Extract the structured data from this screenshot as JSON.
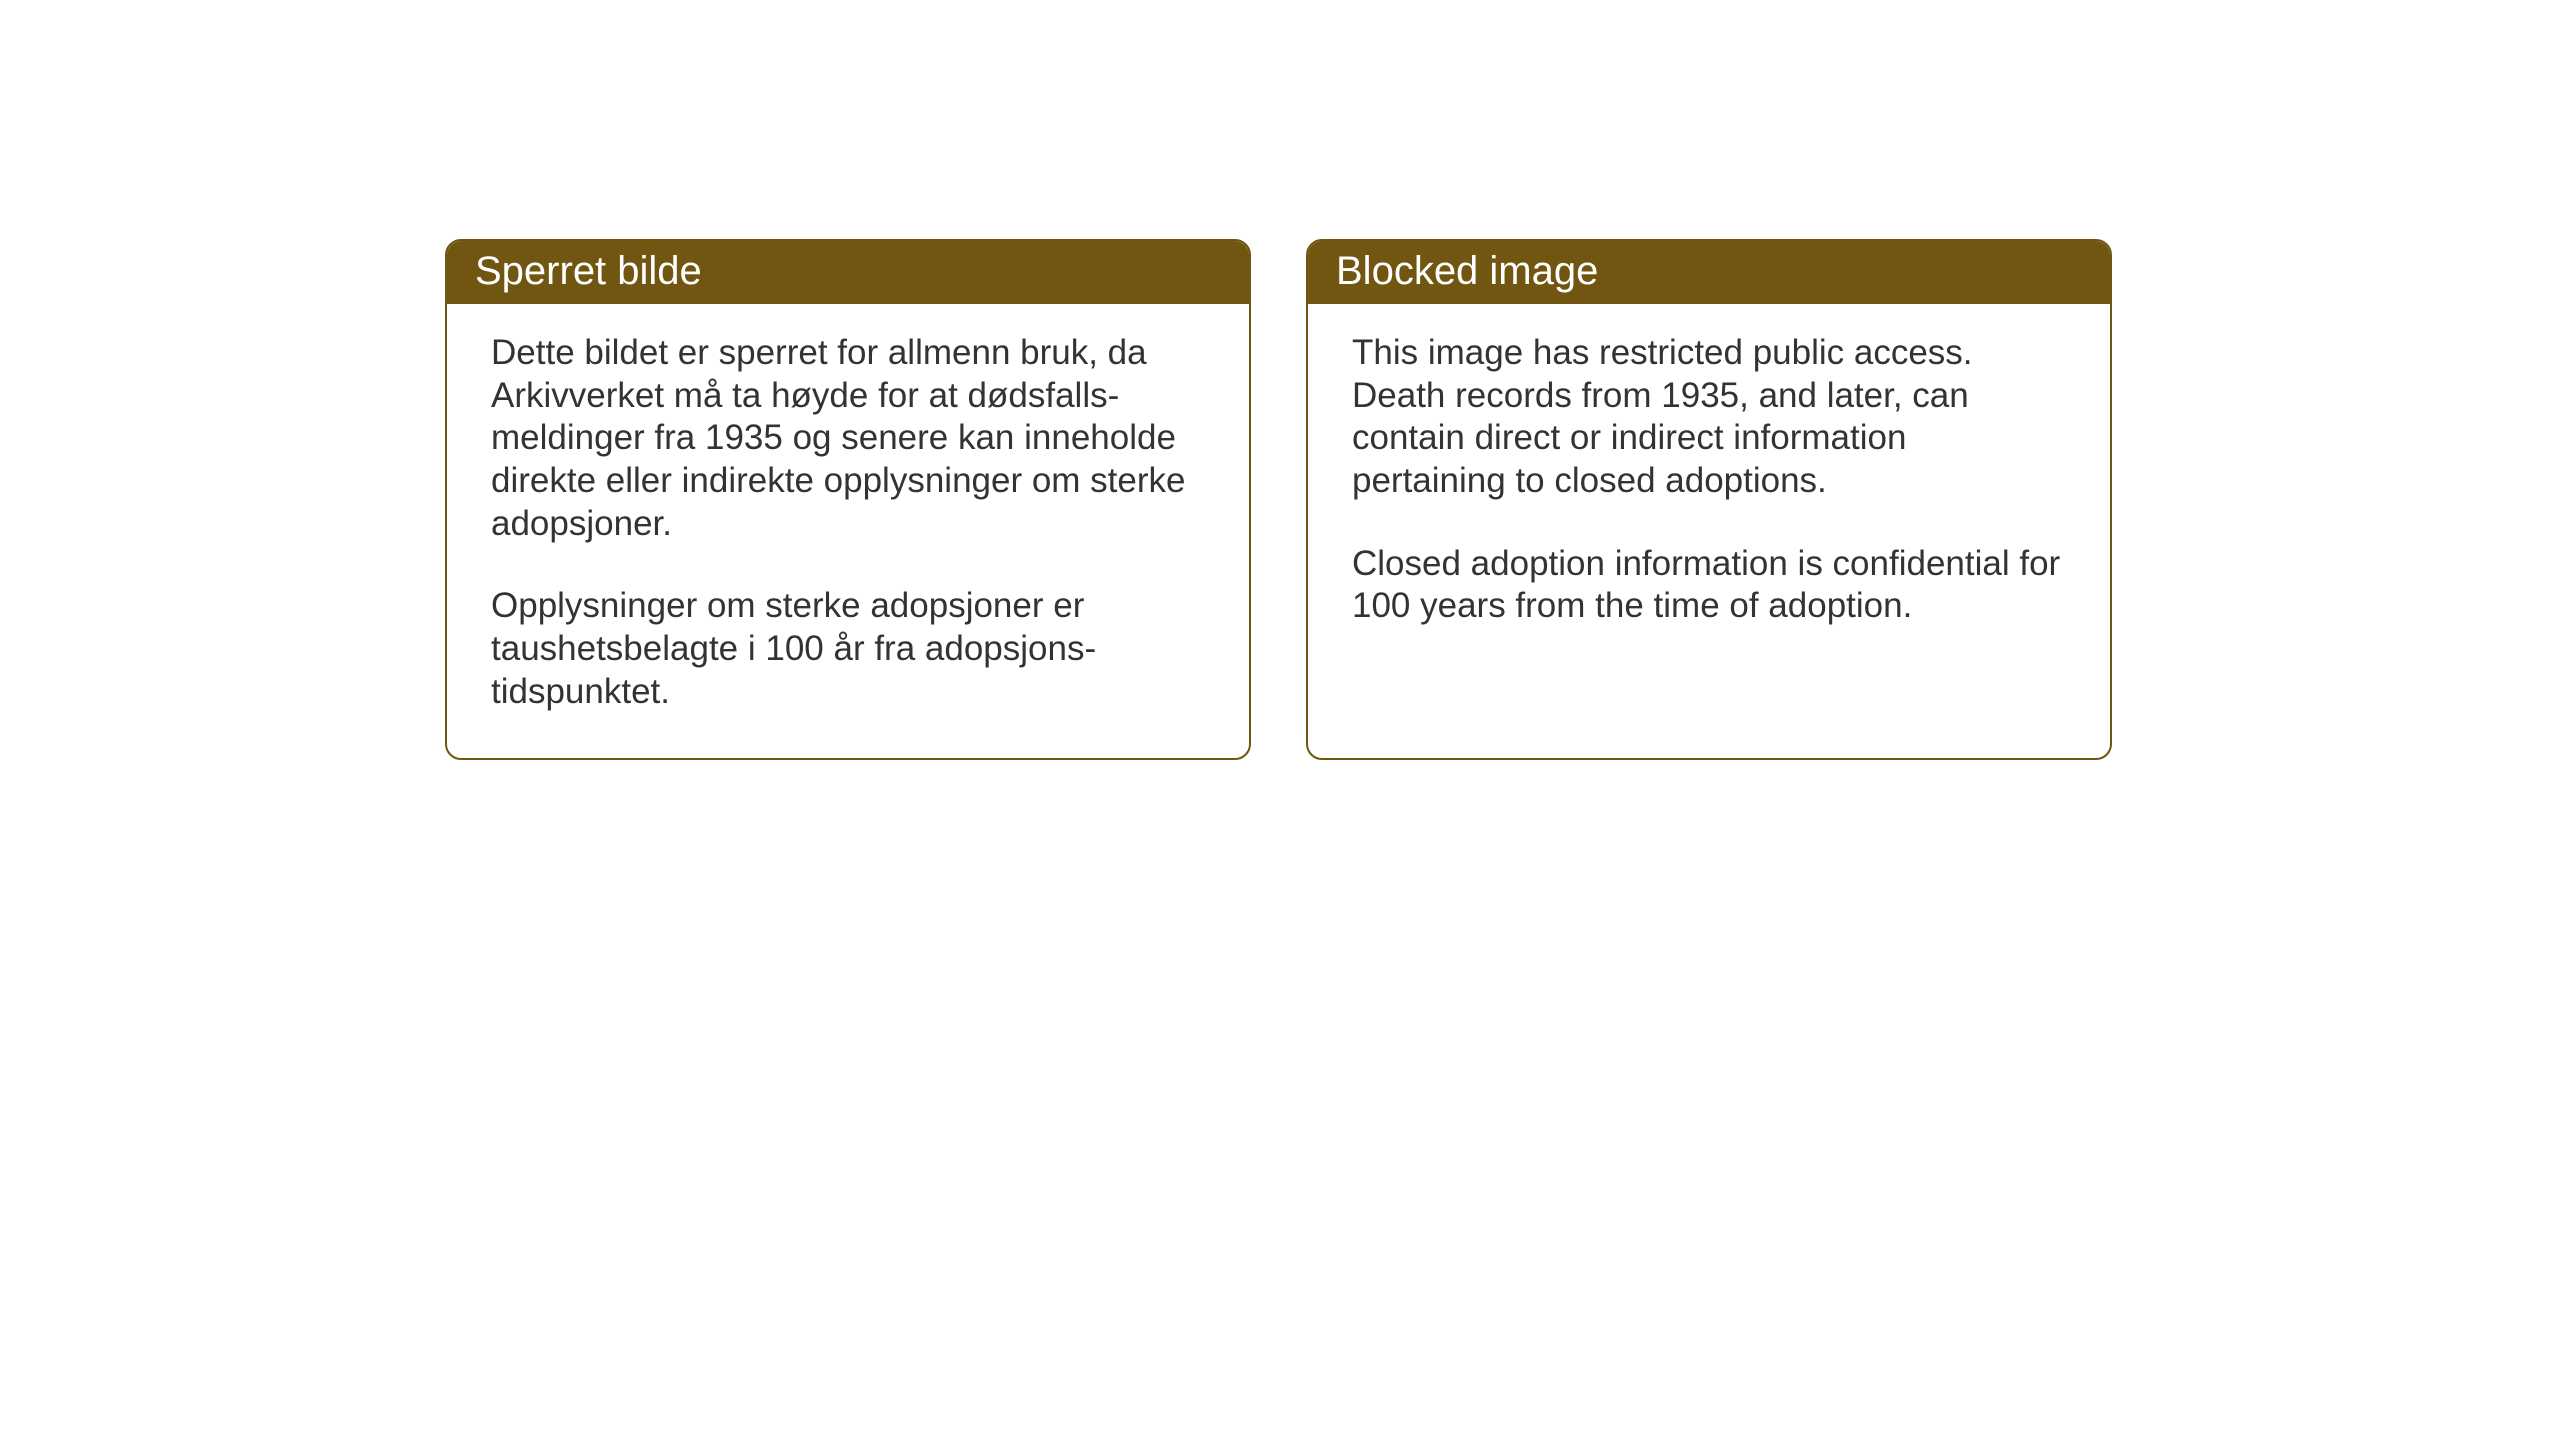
{
  "layout": {
    "background_color": "#ffffff",
    "card_border_color": "#705610",
    "header_background_color": "#705610",
    "header_text_color": "#ffffff",
    "body_text_color": "#333333",
    "card_border_radius": 16,
    "card_border_width": 2,
    "title_fontsize": 40,
    "body_fontsize": 35
  },
  "cards": {
    "norwegian": {
      "title": "Sperret bilde",
      "paragraph1": "Dette bildet er sperret for allmenn bruk, da Arkivverket må ta høyde for at dødsfalls-meldinger fra 1935 og senere kan inneholde direkte eller indirekte opplysninger om sterke adopsjoner.",
      "paragraph2": "Opplysninger om sterke adopsjoner er taushetsbelagte i 100 år fra adopsjons-tidspunktet."
    },
    "english": {
      "title": "Blocked image",
      "paragraph1": "This image has restricted public access. Death records from 1935, and later, can contain direct or indirect information pertaining to closed adoptions.",
      "paragraph2": "Closed adoption information is confidential for 100 years from the time of adoption."
    }
  }
}
